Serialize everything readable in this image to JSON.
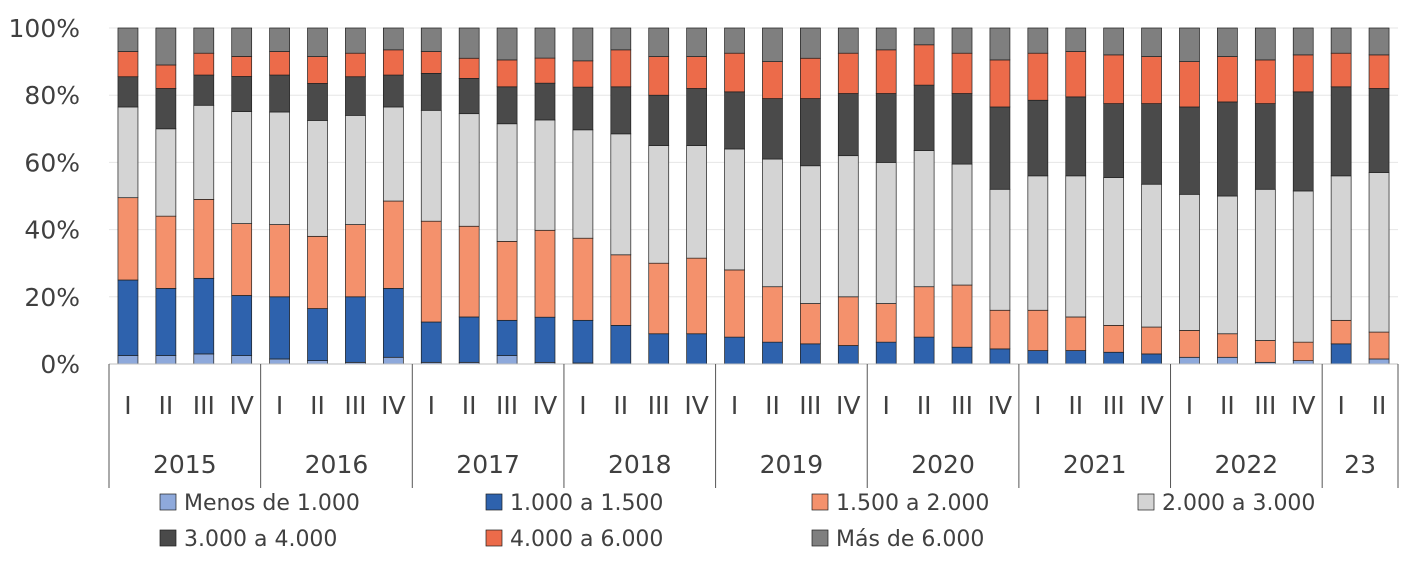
{
  "chart_data": {
    "type": "bar",
    "stacked": true,
    "percent": true,
    "ylim": [
      0,
      100
    ],
    "yticks": [
      "0%",
      "20%",
      "40%",
      "60%",
      "80%",
      "100%"
    ],
    "quarters": [
      "I",
      "II",
      "III",
      "IV",
      "I",
      "II",
      "III",
      "IV",
      "I",
      "II",
      "III",
      "IV",
      "I",
      "II",
      "III",
      "IV",
      "I",
      "II",
      "III",
      "IV",
      "I",
      "II",
      "III",
      "IV",
      "I",
      "II",
      "III",
      "IV",
      "I",
      "II",
      "III",
      "IV",
      "I",
      "II"
    ],
    "years": [
      {
        "label": "2015",
        "count": 4
      },
      {
        "label": "2016",
        "count": 4
      },
      {
        "label": "2017",
        "count": 4
      },
      {
        "label": "2018",
        "count": 4
      },
      {
        "label": "2019",
        "count": 4
      },
      {
        "label": "2020",
        "count": 4
      },
      {
        "label": "2021",
        "count": 4
      },
      {
        "label": "2022",
        "count": 4
      },
      {
        "label": "23",
        "count": 2
      }
    ],
    "series": [
      {
        "name": "Menos de 1.000",
        "color": "#8ea9db",
        "values": [
          2.5,
          2.5,
          3,
          2.5,
          1.5,
          1,
          0.5,
          2,
          0.5,
          0.5,
          2.5,
          0.5,
          0.3,
          0,
          0,
          0,
          0,
          0,
          0,
          0,
          0,
          0,
          0,
          0,
          0,
          0,
          0,
          0,
          2,
          2,
          0.5,
          1,
          0,
          1.5
        ]
      },
      {
        "name": "1.000 a 1.500",
        "color": "#2e62ad",
        "values": [
          22.5,
          20,
          22.5,
          18,
          18.5,
          15.5,
          19.5,
          20.5,
          12,
          13.5,
          10.5,
          13.5,
          13,
          11.5,
          9,
          9,
          8,
          6.5,
          6,
          5.5,
          6.5,
          8,
          5,
          4.5,
          4,
          4,
          3.5,
          3,
          0,
          0,
          0,
          0,
          6,
          0
        ]
      },
      {
        "name": "1.500 a 2.000",
        "color": "#f4916c",
        "values": [
          24.5,
          21.5,
          23.5,
          21.5,
          21.5,
          21.5,
          21.5,
          26,
          30,
          27,
          23.5,
          26,
          25,
          21,
          21,
          22.5,
          20,
          16.5,
          12,
          14.5,
          11.5,
          15,
          18.5,
          11.5,
          12,
          10,
          8,
          8,
          8,
          7,
          6.5,
          5.5,
          7,
          8
        ]
      },
      {
        "name": "2.000 a 3.000",
        "color": "#d4d4d4",
        "values": [
          27,
          26,
          28,
          33.5,
          33.5,
          34.5,
          32.5,
          28,
          33,
          33.5,
          35,
          33,
          33,
          36,
          35,
          33.5,
          36,
          38,
          41,
          42,
          42,
          40.5,
          36,
          36,
          40,
          42,
          44,
          42.5,
          40.5,
          41,
          45,
          45,
          43,
          47.5
        ]
      },
      {
        "name": "3.000 a 4.000",
        "color": "#4a4a4a",
        "values": [
          9,
          12,
          9,
          10.5,
          11,
          11,
          11.5,
          9.5,
          11,
          10.5,
          11,
          11,
          13,
          14,
          15,
          17,
          17,
          18,
          20,
          18.5,
          20.5,
          19.5,
          21,
          24.5,
          22.5,
          23.5,
          22,
          24,
          26,
          28,
          25.5,
          29.5,
          26.5,
          25
        ]
      },
      {
        "name": "4.000 a 6.000",
        "color": "#ec6b4a",
        "values": [
          7.5,
          7,
          6.5,
          6,
          7,
          8,
          7,
          7.5,
          6.5,
          6,
          8,
          7.5,
          8,
          11,
          11.5,
          9.5,
          11.5,
          11,
          12,
          12,
          13,
          12,
          12,
          14,
          14,
          13.5,
          14.5,
          14,
          13.5,
          13.5,
          13,
          11,
          10,
          10
        ]
      },
      {
        "name": "Más de 6.000",
        "color": "#7f7f7f",
        "values": [
          7,
          11,
          7.5,
          8.5,
          7,
          8.5,
          7.5,
          6.5,
          7,
          9,
          9.5,
          9,
          10,
          6.5,
          8.5,
          8.5,
          7.5,
          10,
          9,
          7.5,
          6.5,
          5,
          7.5,
          9.5,
          7.5,
          7,
          8,
          8.5,
          10,
          8.5,
          9.5,
          8,
          7.5,
          8
        ]
      }
    ]
  }
}
